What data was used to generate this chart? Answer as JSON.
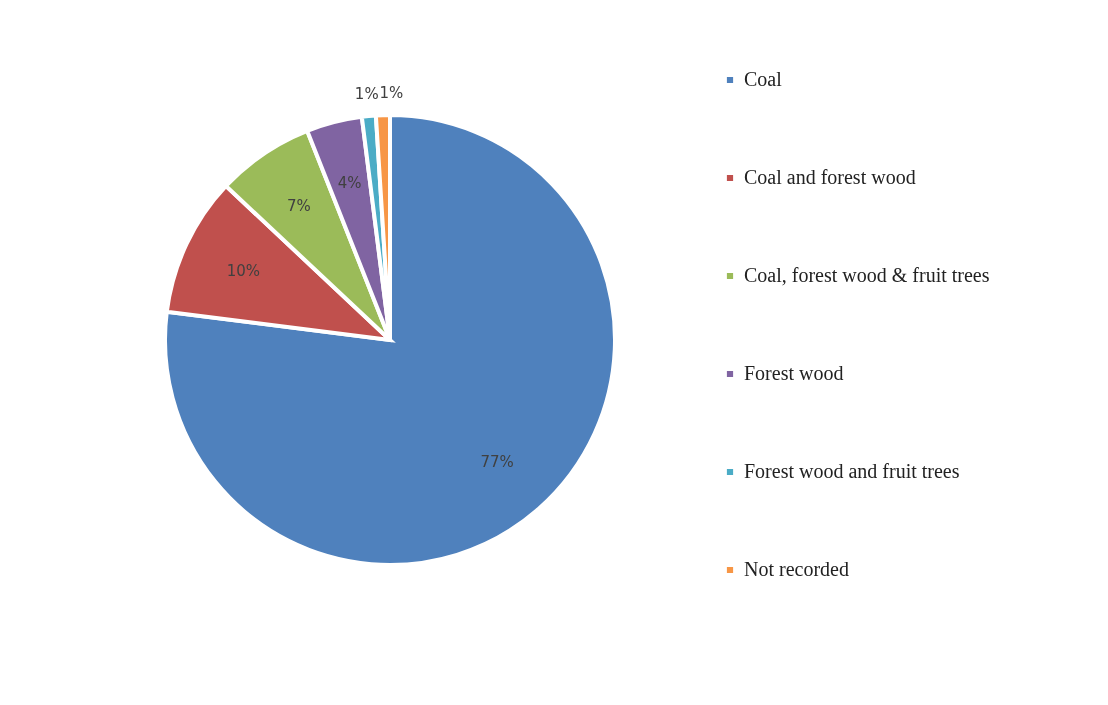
{
  "chart_data": {
    "type": "pie",
    "categories": [
      "Coal",
      "Coal and forest wood",
      "Coal, forest wood & fruit trees",
      "Forest wood",
      "Forest wood and fruit trees",
      "Not recorded"
    ],
    "values": [
      77,
      10,
      7,
      4,
      1,
      1
    ],
    "colors": [
      "#4f81bd",
      "#c0504d",
      "#9bbb59",
      "#8064a2",
      "#4bacc6",
      "#f79646"
    ],
    "value_labels": [
      "77%",
      "10%",
      "7%",
      "4%",
      "1%",
      "1%"
    ],
    "legend": "right"
  }
}
